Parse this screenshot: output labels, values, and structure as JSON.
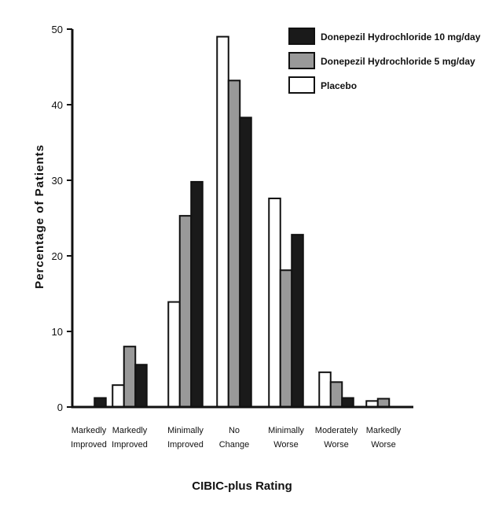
{
  "chart_data": {
    "type": "bar",
    "ylabel": "Percentage of Patients",
    "xlabel": "CIBIC-plus Rating",
    "ylim": [
      0,
      50
    ],
    "yticks": [
      0,
      10,
      20,
      30,
      40,
      50
    ],
    "grid": false,
    "legend_position": "top-right",
    "categories": [
      [
        "Markedly",
        "Improved"
      ],
      [
        "Markedly",
        "Improved"
      ],
      [
        "Minimally",
        "Improved"
      ],
      [
        "No",
        "Change"
      ],
      [
        "Minimally",
        "Worse"
      ],
      [
        "Moderately",
        "Worse"
      ],
      [
        "Markedly",
        "Worse"
      ]
    ],
    "series": [
      {
        "name": "Placebo",
        "color": "#ffffff",
        "values": [
          0,
          2.9,
          13.9,
          49.0,
          27.6,
          4.6,
          0.8
        ]
      },
      {
        "name": "Donepezil Hydrochloride 5 mg/day",
        "color": "#999999",
        "values": [
          0,
          8.0,
          25.3,
          43.2,
          18.1,
          3.3,
          1.1
        ]
      },
      {
        "name": "Donepezil Hydrochloride 10 mg/day",
        "color": "#1a1a1a",
        "values": [
          1.2,
          5.6,
          29.8,
          38.3,
          22.8,
          1.2,
          0
        ]
      }
    ],
    "legend_order": [
      2,
      1,
      0
    ]
  }
}
